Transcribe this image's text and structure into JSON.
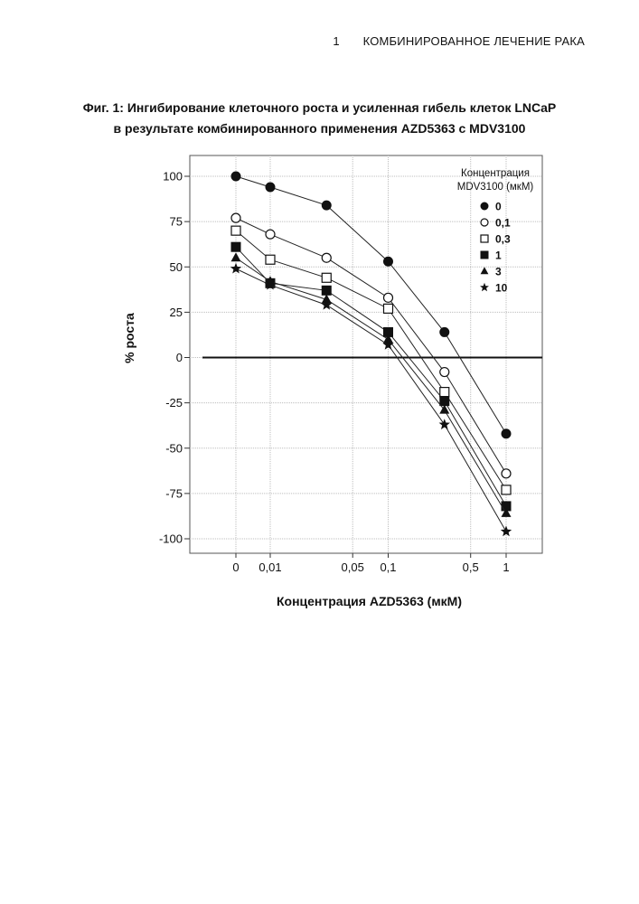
{
  "header": {
    "page_number": "1",
    "running_title": "КОМБИНИРОВАННОЕ ЛЕЧЕНИЕ РАКА"
  },
  "figure": {
    "title_line1": "Фиг. 1: Ингибирование клеточного роста и усиленная гибель клеток LNCaP",
    "title_line2": "в результате комбинированного применения AZD5363 с MDV3100"
  },
  "chart_data": {
    "type": "line",
    "title": "",
    "xlabel": "Концентрация AZD5363 (мкМ)",
    "ylabel": "% роста",
    "x": [
      0,
      0.01,
      0.03,
      0.1,
      0.3,
      1
    ],
    "x_tick_labels": [
      "0",
      "0,01",
      "0,05",
      "0,1",
      "0,5",
      "1"
    ],
    "x_tick_values": [
      0,
      0.01,
      0.05,
      0.1,
      0.5,
      1
    ],
    "y_ticks": [
      100,
      75,
      50,
      25,
      0,
      -25,
      -50,
      -75,
      -100
    ],
    "ylim": [
      -105,
      107
    ],
    "grid": true,
    "legend_title_line1": "Концентрация",
    "legend_title_line2": "MDV3100 (мкМ)",
    "legend_position": "top-right",
    "series": [
      {
        "name": "0",
        "marker": "filled-circle",
        "values": [
          100,
          94,
          84,
          53,
          14,
          -42
        ]
      },
      {
        "name": "0,1",
        "marker": "open-circle",
        "values": [
          77,
          68,
          55,
          33,
          -8,
          -64
        ]
      },
      {
        "name": "0,3",
        "marker": "open-square",
        "values": [
          70,
          54,
          44,
          27,
          -19,
          -73
        ]
      },
      {
        "name": "1",
        "marker": "filled-square",
        "values": [
          61,
          41,
          37,
          14,
          -24,
          -82
        ]
      },
      {
        "name": "3",
        "marker": "filled-triangle",
        "values": [
          55,
          42,
          32,
          10,
          -29,
          -86
        ]
      },
      {
        "name": "10",
        "marker": "star",
        "values": [
          49,
          40,
          29,
          7,
          -37,
          -96
        ]
      }
    ]
  }
}
